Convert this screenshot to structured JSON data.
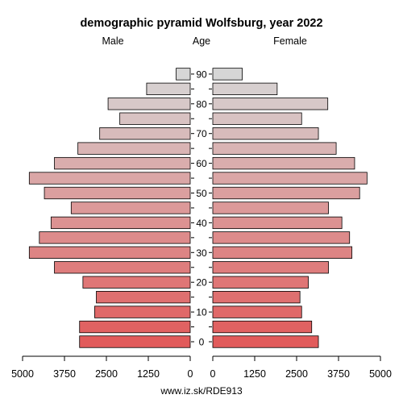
{
  "chart_data": {
    "type": "bar",
    "title": "demographic pyramid Wolfsburg, year 2022",
    "left_label": "Male",
    "center_label": "Age",
    "right_label": "Female",
    "source": "www.iz.sk/RDE913",
    "age_groups": [
      "0",
      "5",
      "10",
      "15",
      "20",
      "25",
      "30",
      "35",
      "40",
      "45",
      "50",
      "55",
      "60",
      "65",
      "70",
      "75",
      "80",
      "85",
      "90"
    ],
    "age_tick_labels": [
      "0",
      "10",
      "20",
      "30",
      "40",
      "50",
      "60",
      "70",
      "80",
      "90"
    ],
    "xlim": [
      0,
      5000
    ],
    "x_ticks_male": [
      "5000",
      "3750",
      "2500",
      "1250",
      "0"
    ],
    "x_ticks_female": [
      "0",
      "1250",
      "2500",
      "3750",
      "5000"
    ],
    "series": [
      {
        "name": "Male",
        "values": [
          3300,
          3300,
          2850,
          2800,
          3200,
          4050,
          4800,
          4500,
          4150,
          3550,
          4350,
          4800,
          4050,
          3350,
          2700,
          2100,
          2450,
          1300,
          420
        ]
      },
      {
        "name": "Female",
        "values": [
          3150,
          2950,
          2650,
          2600,
          2850,
          3450,
          4150,
          4080,
          3850,
          3450,
          4380,
          4600,
          4230,
          3680,
          3150,
          2650,
          3430,
          1920,
          880
        ]
      }
    ],
    "colors": {
      "young": "#e15b5b",
      "old": "#d6d6d6",
      "edge": "#000000"
    }
  }
}
